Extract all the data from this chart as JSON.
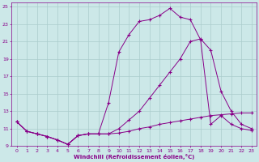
{
  "xlabel": "Windchill (Refroidissement éolien,°C)",
  "ylabel": "",
  "bg_color": "#cce8e8",
  "line_color": "#880088",
  "grid_color": "#aacccc",
  "xlim": [
    -0.5,
    23.5
  ],
  "ylim": [
    9,
    25.5
  ],
  "xticks": [
    0,
    1,
    2,
    3,
    4,
    5,
    6,
    7,
    8,
    9,
    10,
    11,
    12,
    13,
    14,
    15,
    16,
    17,
    18,
    19,
    20,
    21,
    22,
    23
  ],
  "yticks": [
    9,
    11,
    13,
    15,
    17,
    19,
    21,
    23,
    25
  ],
  "line1_x": [
    0,
    1,
    2,
    3,
    4,
    5,
    6,
    7,
    8,
    9,
    10,
    11,
    12,
    13,
    14,
    15,
    16,
    17,
    18,
    19,
    20,
    21,
    22,
    23
  ],
  "line1_y": [
    11.8,
    10.7,
    10.4,
    10.1,
    9.7,
    9.2,
    10.2,
    10.4,
    10.4,
    10.4,
    10.5,
    10.7,
    11.0,
    11.2,
    11.5,
    11.7,
    11.9,
    12.1,
    12.3,
    12.5,
    12.6,
    12.7,
    12.8,
    12.8
  ],
  "line2_x": [
    0,
    1,
    2,
    3,
    4,
    5,
    6,
    7,
    8,
    9,
    10,
    11,
    12,
    13,
    14,
    15,
    16,
    17,
    18,
    19,
    20,
    21,
    22,
    23
  ],
  "line2_y": [
    11.8,
    10.7,
    10.4,
    10.1,
    9.7,
    9.2,
    10.2,
    10.4,
    10.4,
    14.0,
    19.8,
    21.8,
    23.3,
    23.5,
    24.0,
    24.8,
    23.8,
    23.5,
    21.2,
    11.5,
    12.5,
    11.5,
    11.0,
    10.8
  ],
  "line3_x": [
    0,
    1,
    2,
    3,
    4,
    5,
    6,
    7,
    8,
    9,
    10,
    11,
    12,
    13,
    14,
    15,
    16,
    17,
    18,
    19,
    20,
    21,
    22,
    23
  ],
  "line3_y": [
    11.8,
    10.7,
    10.4,
    10.1,
    9.7,
    9.2,
    10.2,
    10.4,
    10.4,
    10.4,
    11.0,
    12.0,
    13.0,
    14.5,
    16.0,
    17.5,
    19.0,
    21.0,
    21.3,
    20.0,
    15.3,
    13.0,
    11.5,
    11.0
  ]
}
